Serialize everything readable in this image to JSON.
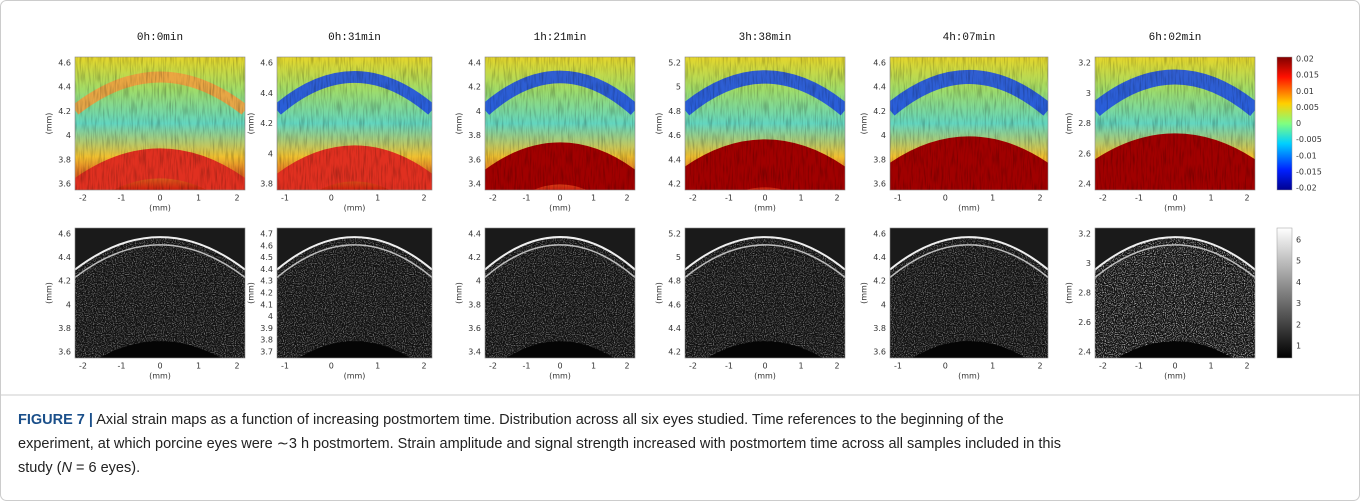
{
  "figure": {
    "axis_label": "(mm)",
    "panels": [
      {
        "title": "0h:0min",
        "strain": {
          "yticks": [
            "4.6",
            "4.4",
            "4.2",
            "4",
            "3.8",
            "3.6"
          ],
          "xticks": [
            "-2",
            "-1",
            "0",
            "1",
            "2"
          ]
        },
        "intensity": {
          "yticks": [
            "4.6",
            "4.4",
            "4.2",
            "4",
            "3.8",
            "3.6"
          ],
          "xticks": [
            "-2",
            "-1",
            "0",
            "1",
            "2"
          ]
        }
      },
      {
        "title": "0h:31min",
        "strain": {
          "yticks": [
            "4.6",
            "4.4",
            "4.2",
            "4",
            "3.8"
          ],
          "xticks": [
            "-1",
            "0",
            "1",
            "2"
          ]
        },
        "intensity": {
          "yticks": [
            "4.7",
            "4.6",
            "4.5",
            "4.4",
            "4.3",
            "4.2",
            "4.1",
            "4",
            "3.9",
            "3.8",
            "3.7"
          ],
          "xticks": [
            "-1",
            "0",
            "1",
            "2"
          ]
        }
      },
      {
        "title": "1h:21min",
        "strain": {
          "yticks": [
            "4.4",
            "4.2",
            "4",
            "3.8",
            "3.6",
            "3.4"
          ],
          "xticks": [
            "-2",
            "-1",
            "0",
            "1",
            "2"
          ]
        },
        "intensity": {
          "yticks": [
            "4.4",
            "4.2",
            "4",
            "3.8",
            "3.6",
            "3.4"
          ],
          "xticks": [
            "-2",
            "-1",
            "0",
            "1",
            "2"
          ]
        }
      },
      {
        "title": "3h:38min",
        "strain": {
          "yticks": [
            "5.2",
            "5",
            "4.8",
            "4.6",
            "4.4",
            "4.2"
          ],
          "xticks": [
            "-2",
            "-1",
            "0",
            "1",
            "2"
          ]
        },
        "intensity": {
          "yticks": [
            "5.2",
            "5",
            "4.8",
            "4.6",
            "4.4",
            "4.2"
          ],
          "xticks": [
            "-2",
            "-1",
            "0",
            "1",
            "2"
          ]
        }
      },
      {
        "title": "4h:07min",
        "strain": {
          "yticks": [
            "4.6",
            "4.4",
            "4.2",
            "4",
            "3.8",
            "3.6"
          ],
          "xticks": [
            "-1",
            "0",
            "1",
            "2"
          ]
        },
        "intensity": {
          "yticks": [
            "4.6",
            "4.4",
            "4.2",
            "4",
            "3.8",
            "3.6"
          ],
          "xticks": [
            "-1",
            "0",
            "1",
            "2"
          ]
        }
      },
      {
        "title": "6h:02min",
        "strain": {
          "yticks": [
            "3.2",
            "3",
            "2.8",
            "2.6",
            "2.4"
          ],
          "xticks": [
            "-2",
            "-1",
            "0",
            "1",
            "2"
          ]
        },
        "intensity": {
          "yticks": [
            "3.2",
            "3",
            "2.8",
            "2.6",
            "2.4"
          ],
          "xticks": [
            "-2",
            "-1",
            "0",
            "1",
            "2"
          ]
        }
      }
    ],
    "strain_colorbar": [
      "0.02",
      "0.015",
      "0.01",
      "0.005",
      "0",
      "-0.005",
      "-0.01",
      "-0.015",
      "-0.02"
    ],
    "intensity_colorbar": [
      "6",
      "5",
      "4",
      "3",
      "2",
      "1"
    ]
  },
  "caption": {
    "label": "FIGURE 7 |",
    "lines": [
      " Axial strain maps as a function of increasing postmortem time. Distribution across all six eyes studied. Time references to the beginning of the",
      "experiment, at which porcine eyes were ∼3 h postmortem. Strain amplitude and signal strength increased with postmortem time across all samples included in this",
      "study ("
    ],
    "italic": "N",
    "end": " = 6 eyes)."
  }
}
